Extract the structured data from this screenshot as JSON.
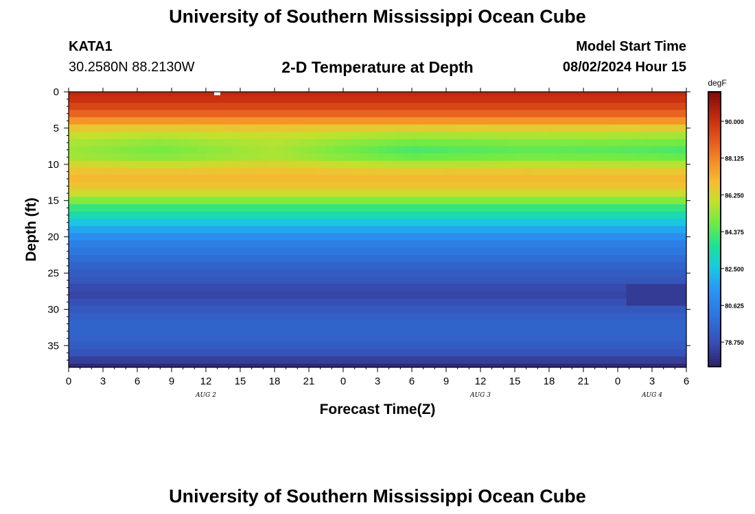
{
  "header": {
    "title": "University of Southern Mississippi Ocean Cube",
    "station": "KATA1",
    "coordinates": "30.2580N  88.2130W",
    "plot_title": "2-D Temperature at Depth",
    "model_label": "Model Start Time",
    "model_time": "08/02/2024 Hour 15"
  },
  "footer": {
    "title": "University of Southern Mississippi Ocean Cube"
  },
  "chart_data": {
    "type": "heatmap",
    "title": "2-D Temperature at Depth",
    "xlabel": "Forecast Time(Z)",
    "ylabel": "Depth (ft)",
    "x_range": [
      0,
      54
    ],
    "y_range": [
      0,
      38
    ],
    "y_inverted": true,
    "x_tick_values": [
      0,
      3,
      6,
      9,
      12,
      15,
      18,
      21,
      24,
      27,
      30,
      33,
      36,
      39,
      42,
      45,
      48,
      51,
      54
    ],
    "x_tick_labels": [
      "0",
      "3",
      "6",
      "9",
      "12",
      "15",
      "18",
      "21",
      "0",
      "3",
      "6",
      "9",
      "12",
      "15",
      "18",
      "21",
      "0",
      "3",
      "6"
    ],
    "date_labels": [
      {
        "x": 12,
        "label": "AUG 2"
      },
      {
        "x": 36,
        "label": "AUG 3"
      },
      {
        "x": 51,
        "label": "AUG 4"
      }
    ],
    "y_ticks": [
      0,
      5,
      10,
      15,
      20,
      25,
      30,
      35
    ],
    "colorbar": {
      "units": "degF",
      "min": 77.5,
      "max": 91.5,
      "tick_values": [
        90.0,
        88.125,
        86.25,
        84.375,
        82.5,
        80.625,
        78.75
      ],
      "tick_labels": [
        "90.000",
        "88.125",
        "86.250",
        "84.375",
        "82.500",
        "80.625",
        "78.750"
      ]
    },
    "depths_ft": [
      0,
      1,
      2,
      3,
      4,
      5,
      6,
      7,
      8,
      9,
      10,
      11,
      12,
      13,
      14,
      15,
      16,
      17,
      18,
      19,
      20,
      21,
      22,
      23,
      24,
      25,
      26,
      27,
      28,
      29,
      30,
      31,
      32,
      33,
      34,
      35,
      36,
      37,
      38
    ],
    "temperature_profile_degF": [
      90.3,
      90.0,
      89.5,
      88.8,
      87.8,
      86.6,
      85.8,
      85.3,
      85.0,
      85.2,
      86.0,
      86.7,
      87.0,
      86.7,
      86.0,
      85.0,
      84.0,
      83.3,
      82.5,
      81.8,
      81.1,
      80.5,
      80.2,
      79.8,
      79.5,
      79.2,
      79.0,
      78.6,
      78.5,
      78.8,
      79.1,
      79.3,
      79.5,
      79.5,
      79.4,
      79.2,
      78.9,
      78.3,
      77.7
    ],
    "time_variation_note": "",
    "warm_layer_minima_degF": [
      {
        "x": 0,
        "value": 85.4
      },
      {
        "x": 8,
        "value": 84.9
      },
      {
        "x": 18,
        "value": 85.6
      },
      {
        "x": 24,
        "value": 84.9
      },
      {
        "x": 30,
        "value": 84.3
      },
      {
        "x": 40,
        "value": 84.6
      },
      {
        "x": 48,
        "value": 84.5
      },
      {
        "x": 54,
        "value": 84.3
      }
    ],
    "cold_anomaly": {
      "x_from": 49,
      "x_to": 54,
      "depth_from": 27,
      "depth_to": 29,
      "value": 78.2
    }
  }
}
